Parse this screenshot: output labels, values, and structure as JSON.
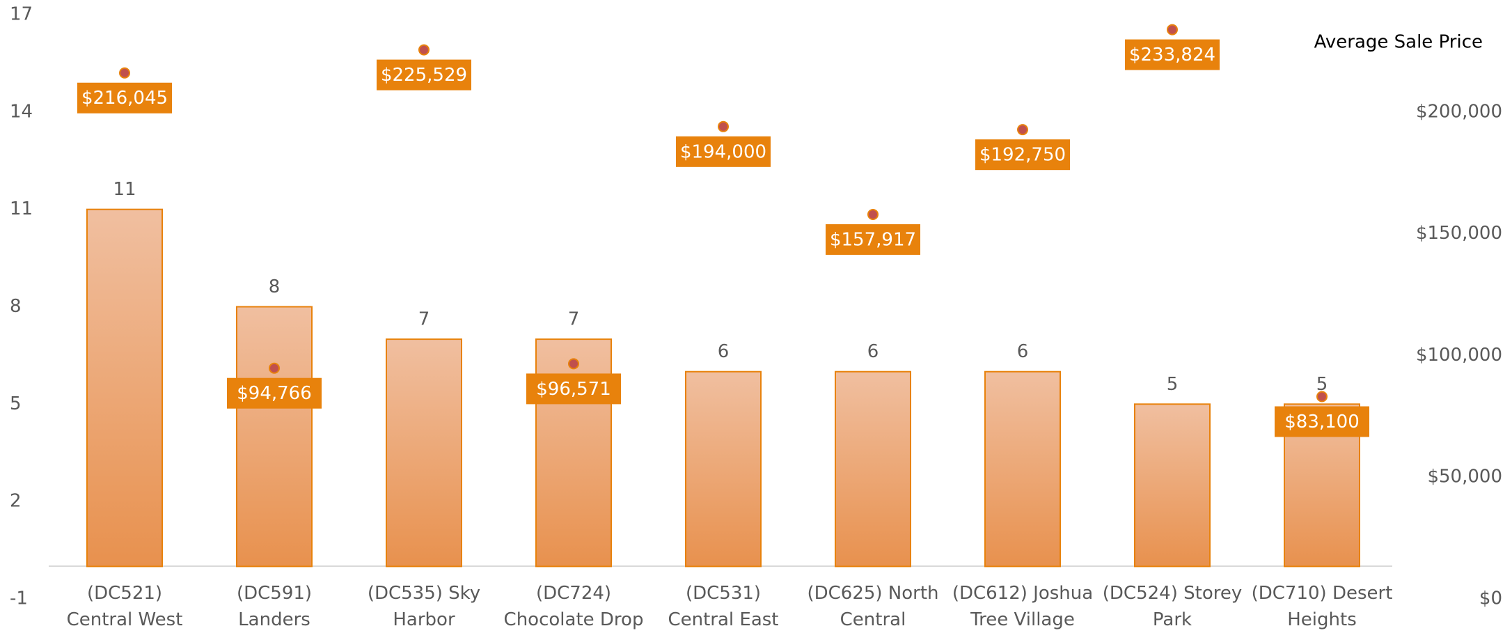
{
  "chart_data": {
    "type": "bar",
    "categories": [
      "(DC521) Central West",
      "(DC591) Landers",
      "(DC535) Sky Harbor",
      "(DC724) Chocolate Drop",
      "(DC531) Central East",
      "(DC625) North Central",
      "(DC612) Joshua Tree Village",
      "(DC524) Storey Park",
      "(DC710) Desert Heights"
    ],
    "series": [
      {
        "color": "#e8820c",
        "values": [
          11,
          8,
          7,
          7,
          6,
          6,
          6,
          5,
          5
        ]
      },
      {
        "name": "Average Sale Price",
        "color": "#c0504d",
        "axis": "y2",
        "values": [
          216045,
          94766,
          225529,
          96571,
          194000,
          157917,
          192750,
          233824,
          83100
        ],
        "value_labels": [
          "$216,045",
          "$94,766",
          "$225,529",
          "$96,571",
          "$194,000",
          "$157,917",
          "$192,750",
          "$233,824",
          "$83,100"
        ]
      }
    ],
    "ylim": [
      -1,
      17
    ],
    "yticks": [
      -1,
      2,
      5,
      8,
      11,
      14,
      17
    ],
    "y2lim": [
      0,
      240000
    ],
    "y2ticks": [
      {
        "value": 0,
        "label": "$0"
      },
      {
        "value": 50000,
        "label": "$50,000"
      },
      {
        "value": 100000,
        "label": "$100,000"
      },
      {
        "value": 150000,
        "label": "$150,000"
      },
      {
        "value": 200000,
        "label": "$200,000"
      }
    ],
    "grid": false,
    "legend": "top-right"
  }
}
